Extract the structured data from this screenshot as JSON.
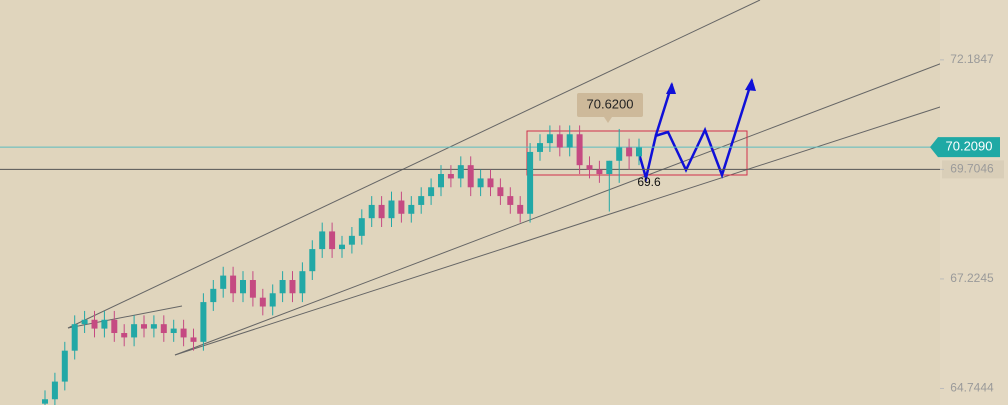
{
  "chart_data": {
    "type": "candlestick",
    "open": [
      64.4,
      64.5,
      64.9,
      65.6,
      66.2,
      66.3,
      66.1,
      66.3,
      66.0,
      65.9,
      66.2,
      66.1,
      66.2,
      66.0,
      66.1,
      65.9,
      65.8,
      66.7,
      67.0,
      67.3,
      66.9,
      67.2,
      66.8,
      66.6,
      66.9,
      67.2,
      66.9,
      67.4,
      67.9,
      68.3,
      67.9,
      68.0,
      68.2,
      68.6,
      68.9,
      68.6,
      69.0,
      68.7,
      68.9,
      69.1,
      69.3,
      69.6,
      69.5,
      69.8,
      69.3,
      69.5,
      69.3,
      69.1,
      68.9,
      68.7,
      70.1,
      70.3,
      70.5,
      70.2,
      70.5,
      69.8,
      69.7,
      69.6,
      69.9,
      70.2,
      70.0
    ],
    "high": [
      64.7,
      65.1,
      65.8,
      66.4,
      66.5,
      66.5,
      66.5,
      66.5,
      66.2,
      66.4,
      66.4,
      66.4,
      66.4,
      66.3,
      66.3,
      66.1,
      66.9,
      67.2,
      67.5,
      67.5,
      67.4,
      67.4,
      67.0,
      67.1,
      67.4,
      67.4,
      67.6,
      68.1,
      68.5,
      68.5,
      68.2,
      68.4,
      68.8,
      69.1,
      69.1,
      69.2,
      69.2,
      69.1,
      69.3,
      69.5,
      69.8,
      69.8,
      70.0,
      70.0,
      69.7,
      69.7,
      69.5,
      69.3,
      69.1,
      70.3,
      70.5,
      70.7,
      70.7,
      70.7,
      70.7,
      70.0,
      69.9,
      69.9,
      70.62,
      70.4,
      70.4
    ],
    "low": [
      64.2,
      64.3,
      64.7,
      65.4,
      66.0,
      65.9,
      65.9,
      65.8,
      65.7,
      65.7,
      65.9,
      65.9,
      65.8,
      65.8,
      65.7,
      65.6,
      65.6,
      66.5,
      66.8,
      66.7,
      66.7,
      66.6,
      66.4,
      66.4,
      66.7,
      66.7,
      66.7,
      67.2,
      67.7,
      67.7,
      67.7,
      67.8,
      68.0,
      68.4,
      68.4,
      68.4,
      68.5,
      68.5,
      68.7,
      68.9,
      69.1,
      69.3,
      69.3,
      69.1,
      69.1,
      69.1,
      68.9,
      68.7,
      68.5,
      68.5,
      69.9,
      70.1,
      70.0,
      70.0,
      69.6,
      69.5,
      69.4,
      68.75,
      69.4,
      69.7,
      69.8
    ],
    "close": [
      64.5,
      64.9,
      65.6,
      66.2,
      66.3,
      66.1,
      66.3,
      66.0,
      65.9,
      66.2,
      66.1,
      66.2,
      66.0,
      66.1,
      65.9,
      65.8,
      66.7,
      67.0,
      67.3,
      66.9,
      67.2,
      66.8,
      66.6,
      66.9,
      67.2,
      66.9,
      67.4,
      67.9,
      68.3,
      67.9,
      68.0,
      68.2,
      68.6,
      68.9,
      68.6,
      69.0,
      68.7,
      68.9,
      69.1,
      69.3,
      69.6,
      69.5,
      69.8,
      69.3,
      69.5,
      69.3,
      69.1,
      68.9,
      68.7,
      70.1,
      70.3,
      70.5,
      70.2,
      70.5,
      69.8,
      69.7,
      69.6,
      69.9,
      70.2,
      70.0,
      70.2
    ],
    "up_color": "#22a8a6",
    "down_color": "#c54a82",
    "ylim": [
      64.37,
      73.54
    ],
    "yticks": [
      72.1847,
      69.7046,
      67.2245,
      64.7444
    ],
    "current_price": {
      "value": 70.209,
      "label": "70.2090"
    },
    "annotations": [
      "70.6200",
      "69.6"
    ]
  }
}
